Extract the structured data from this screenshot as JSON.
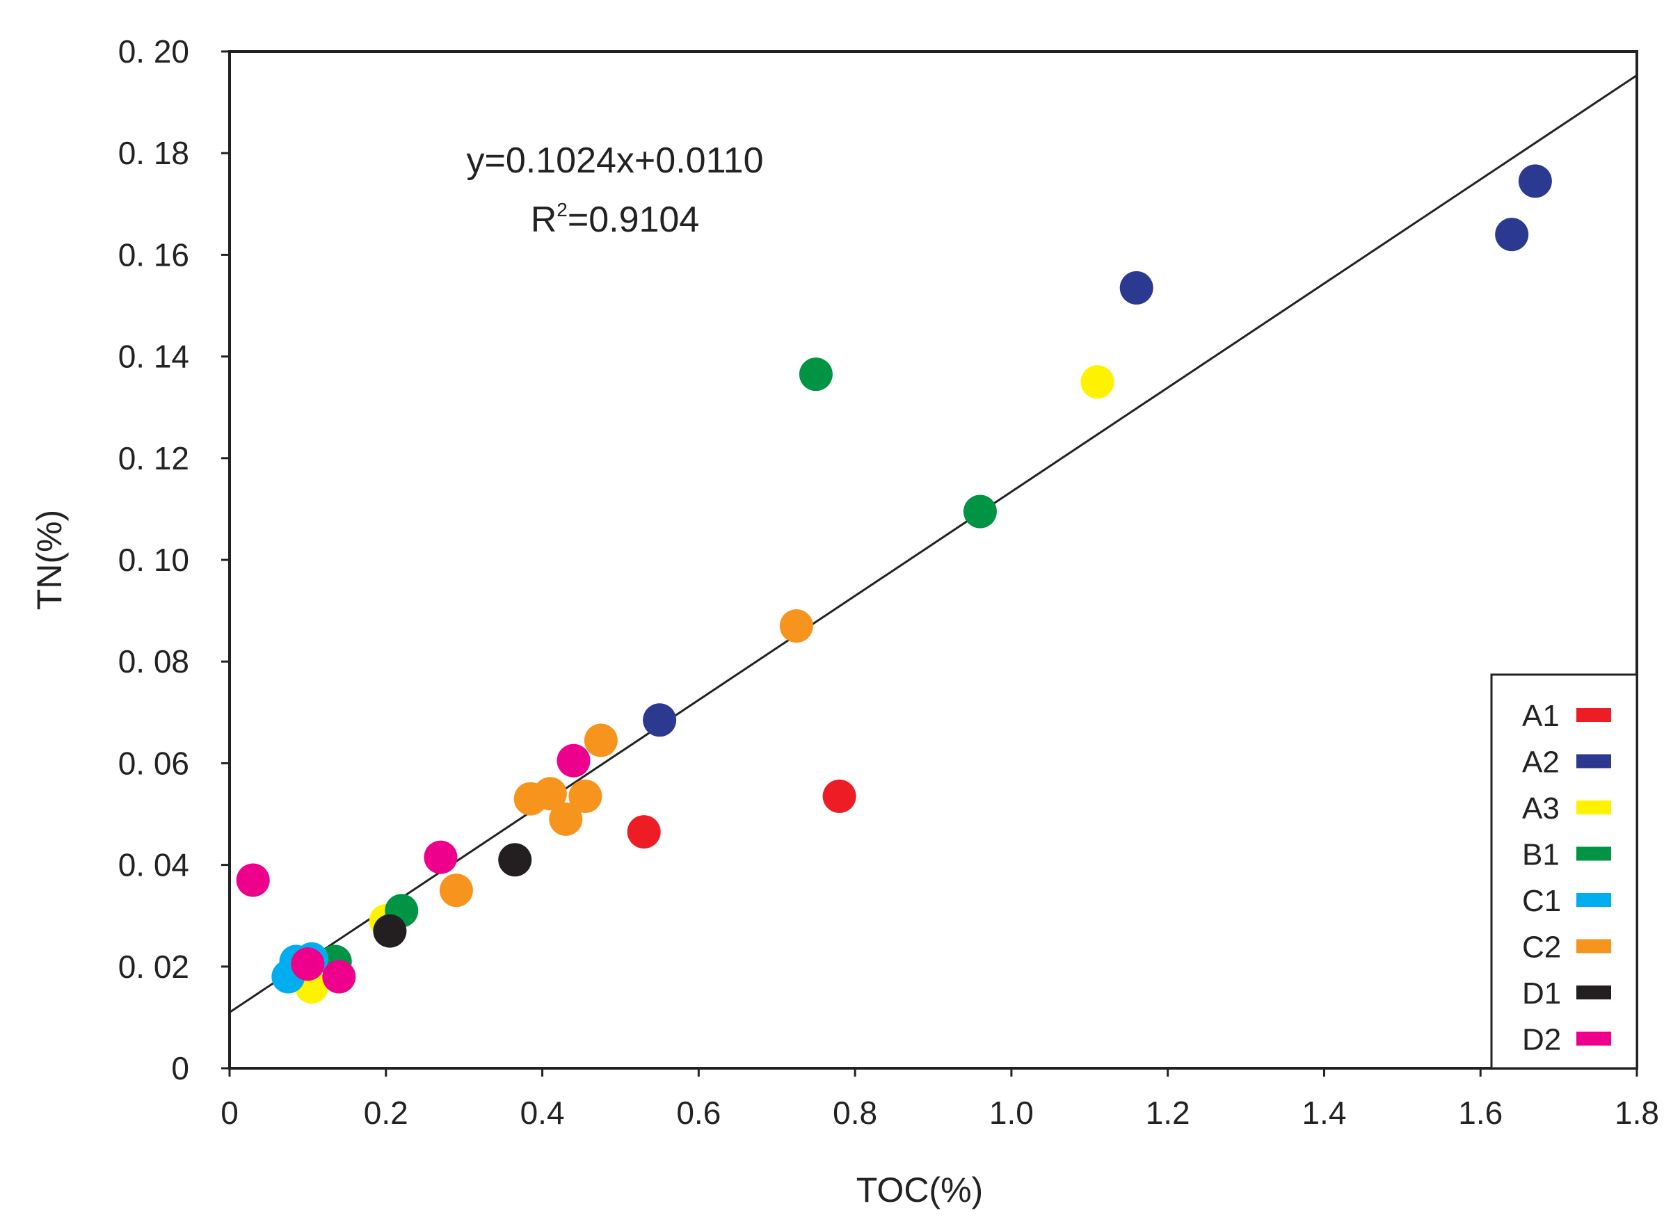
{
  "chart_data": {
    "type": "scatter",
    "title": "",
    "xlabel": "TOC(%)",
    "ylabel": "TN(%)",
    "xlim": [
      0,
      1.8
    ],
    "ylim": [
      0,
      0.2
    ],
    "xticks": [
      0,
      0.2,
      0.4,
      0.6,
      0.8,
      1.0,
      1.2,
      1.4,
      1.6,
      1.8
    ],
    "xtick_labels": [
      "0",
      "0.2",
      "0.4",
      "0.6",
      "0.8",
      "1.0",
      "1.2",
      "1.4",
      "1.6",
      "1.8"
    ],
    "yticks": [
      0,
      0.02,
      0.04,
      0.06,
      0.08,
      0.1,
      0.12,
      0.14,
      0.16,
      0.18,
      0.2
    ],
    "ytick_labels": [
      "0",
      "0. 02",
      "0. 04",
      "0. 06",
      "0. 08",
      "0. 10",
      "0. 12",
      "0. 14",
      "0. 16",
      "0. 18",
      "0. 20"
    ],
    "grid": false,
    "legend_position": "bottom-right",
    "regression": {
      "slope": 0.1024,
      "intercept": 0.011,
      "equation": "y=0.1024x+0.0110",
      "r2_prefix": "R",
      "r2_sup": "2",
      "r2_value": "=0.9104"
    },
    "series": [
      {
        "name": "A1",
        "color": "#ee1c25",
        "points": [
          [
            0.53,
            0.0465
          ],
          [
            0.78,
            0.0535
          ]
        ]
      },
      {
        "name": "A2",
        "color": "#2b3990",
        "points": [
          [
            0.55,
            0.0685
          ],
          [
            1.16,
            0.1535
          ],
          [
            1.64,
            0.164
          ],
          [
            1.67,
            0.1745
          ]
        ]
      },
      {
        "name": "A3",
        "color": "#fff200",
        "points": [
          [
            0.105,
            0.016
          ],
          [
            0.2,
            0.029
          ],
          [
            1.11,
            0.135
          ]
        ]
      },
      {
        "name": "B1",
        "color": "#009444",
        "points": [
          [
            0.135,
            0.021
          ],
          [
            0.22,
            0.031
          ],
          [
            0.75,
            0.1365
          ],
          [
            0.96,
            0.1095
          ]
        ]
      },
      {
        "name": "C1",
        "color": "#00aeef",
        "points": [
          [
            0.075,
            0.018
          ],
          [
            0.085,
            0.021
          ],
          [
            0.105,
            0.0215
          ]
        ]
      },
      {
        "name": "C2",
        "color": "#f7941d",
        "points": [
          [
            0.29,
            0.035
          ],
          [
            0.385,
            0.053
          ],
          [
            0.41,
            0.054
          ],
          [
            0.43,
            0.049
          ],
          [
            0.455,
            0.0535
          ],
          [
            0.475,
            0.0645
          ],
          [
            0.725,
            0.087
          ]
        ]
      },
      {
        "name": "D1",
        "color": "#231f20",
        "points": [
          [
            0.205,
            0.027
          ],
          [
            0.365,
            0.041
          ]
        ]
      },
      {
        "name": "D2",
        "color": "#ec008c",
        "points": [
          [
            0.03,
            0.037
          ],
          [
            0.1,
            0.0205
          ],
          [
            0.14,
            0.018
          ],
          [
            0.27,
            0.0415
          ],
          [
            0.44,
            0.0605
          ]
        ]
      }
    ]
  }
}
